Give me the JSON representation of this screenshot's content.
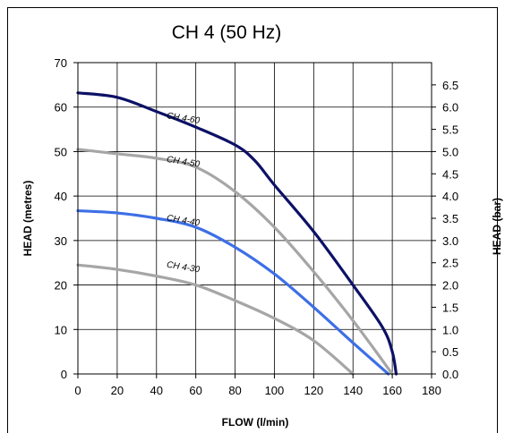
{
  "chart_data": {
    "type": "line",
    "title": "CH 4 (50 Hz)",
    "xlabel": "FLOW (l/min)",
    "ylabel": "HEAD (metres)",
    "y2label": "HEAD (bar)",
    "xlim": [
      0,
      180
    ],
    "ylim": [
      0,
      70
    ],
    "y2lim": [
      0,
      7
    ],
    "xticks": [
      "0",
      "20",
      "40",
      "60",
      "80",
      "100",
      "120",
      "140",
      "160",
      "180"
    ],
    "yticks": [
      "0",
      "10",
      "20",
      "30",
      "40",
      "50",
      "60",
      "70"
    ],
    "y2ticks": [
      "0.0",
      "0.5",
      "1.0",
      "1.5",
      "2.0",
      "2.5",
      "3.0",
      "3.5",
      "4.0",
      "4.5",
      "5.0",
      "5.5",
      "6.0",
      "6.5"
    ],
    "grid": true,
    "series": [
      {
        "name": "CH 4-30",
        "color": "#a6a6a6",
        "label_at": [
          45,
          24
        ],
        "x": [
          0,
          20,
          40,
          60,
          80,
          100,
          120,
          140
        ],
        "y": [
          24.5,
          23.5,
          22,
          20,
          16.5,
          12.5,
          7.5,
          0
        ]
      },
      {
        "name": "CH 4-40",
        "color": "#3d6fe6",
        "label_at": [
          45,
          34.5
        ],
        "x": [
          0,
          20,
          40,
          60,
          80,
          100,
          120,
          140,
          158
        ],
        "y": [
          36.7,
          36.2,
          35,
          33,
          28.5,
          22.5,
          15,
          7,
          0
        ]
      },
      {
        "name": "CH 4-50",
        "color": "#a6a6a6",
        "label_at": [
          45,
          47.7
        ],
        "x": [
          0,
          20,
          40,
          60,
          80,
          100,
          120,
          140,
          160
        ],
        "y": [
          50.5,
          49.5,
          48.5,
          46.5,
          41,
          33,
          23,
          12,
          0
        ]
      },
      {
        "name": "CH 4-60",
        "color": "#0d1166",
        "label_at": [
          45,
          57.5
        ],
        "x": [
          0,
          20,
          40,
          60,
          80,
          90,
          100,
          120,
          140,
          155,
          160,
          162
        ],
        "y": [
          63.2,
          62.2,
          59,
          55.5,
          51.5,
          48,
          42.5,
          32,
          20,
          10.5,
          5,
          0
        ]
      }
    ]
  }
}
